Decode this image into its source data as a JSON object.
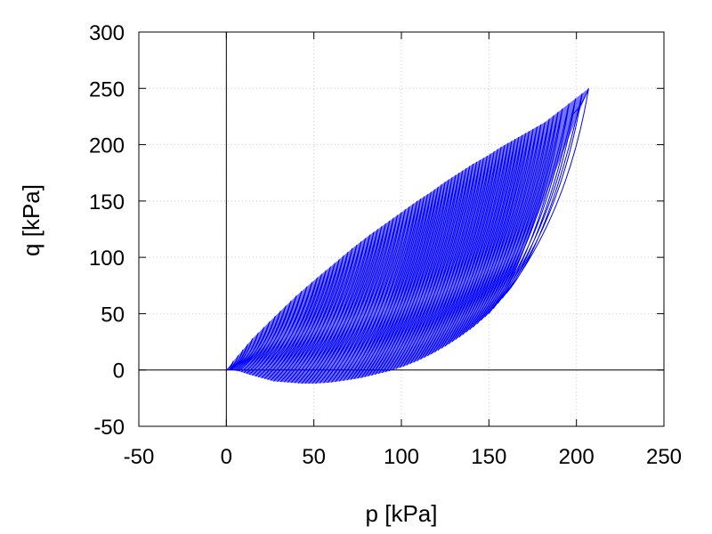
{
  "chart_data": {
    "type": "line",
    "title": "",
    "xlabel": "p [kPa]",
    "ylabel": "q [kPa]",
    "xlim": [
      -50,
      250
    ],
    "ylim": [
      -50,
      300
    ],
    "xticks": [
      -50,
      0,
      50,
      100,
      150,
      200,
      250
    ],
    "yticks": [
      -50,
      0,
      50,
      100,
      150,
      200,
      250,
      300
    ],
    "xtick_labels": [
      "-50",
      "0",
      "50",
      "100",
      "150",
      "200",
      "250"
    ],
    "ytick_labels": [
      "-50",
      "0",
      "50",
      "100",
      "150",
      "200",
      "250",
      "300"
    ],
    "grid": true,
    "zero_lines": true,
    "legend": "none",
    "series": [
      {
        "color": "#0000ff",
        "description_pattern": "cyclic stress path spiralling from (207,250) toward the origin",
        "peak_points": [
          [
            207,
            250
          ],
          [
            192,
            232
          ],
          [
            182,
            220
          ],
          [
            173,
            212
          ],
          [
            165,
            205
          ],
          [
            157,
            198
          ],
          [
            149,
            190
          ],
          [
            141,
            183
          ],
          [
            133,
            175
          ],
          [
            125,
            167
          ],
          [
            117,
            158
          ],
          [
            109,
            150
          ],
          [
            100,
            140
          ],
          [
            91,
            130
          ],
          [
            82,
            120
          ],
          [
            72,
            108
          ],
          [
            62,
            95
          ],
          [
            52,
            82
          ],
          [
            40,
            66
          ],
          [
            28,
            48
          ],
          [
            15,
            28
          ],
          [
            4,
            8
          ]
        ],
        "trough_points": [
          [
            160,
            68
          ],
          [
            150,
            50
          ],
          [
            141,
            38
          ],
          [
            133,
            29
          ],
          [
            125,
            21
          ],
          [
            117,
            14
          ],
          [
            109,
            8
          ],
          [
            101,
            3
          ],
          [
            93,
            -1
          ],
          [
            85,
            -4
          ],
          [
            77,
            -7
          ],
          [
            69,
            -9
          ],
          [
            60,
            -11
          ],
          [
            51,
            -12
          ],
          [
            43,
            -12
          ],
          [
            35,
            -11
          ],
          [
            27,
            -10
          ],
          [
            20,
            -7
          ],
          [
            13,
            -4
          ],
          [
            7,
            -1
          ],
          [
            3,
            0
          ],
          [
            1,
            0
          ]
        ],
        "end_point": [
          0,
          0
        ],
        "start_point": [
          197,
          226
        ]
      }
    ]
  }
}
